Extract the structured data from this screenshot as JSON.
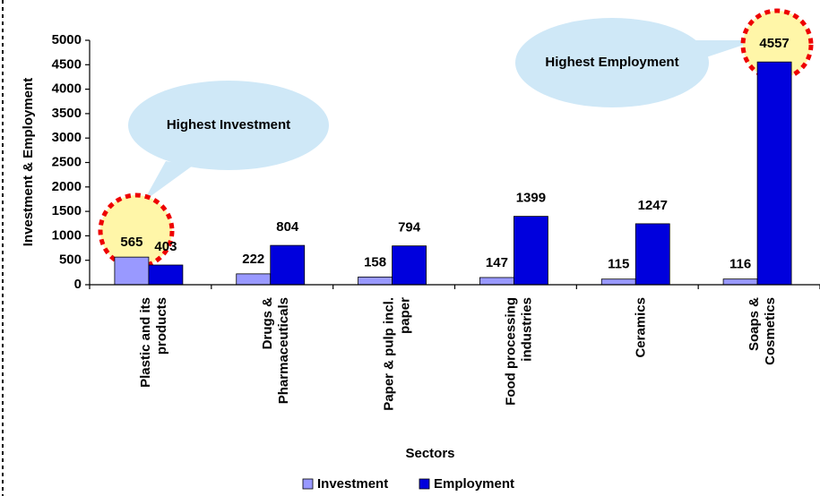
{
  "chart_data": {
    "type": "bar",
    "xlabel": "Sectors",
    "ylabel": "Investment & Employment",
    "categories": [
      "Plastic and its\nproducts",
      "Drugs &\nPharmaceuticals",
      "Paper & pulp incl.\npaper",
      "Food processing\nindustries",
      "Ceramics",
      "Soaps &\nCosmetics"
    ],
    "series": [
      {
        "name": "Investment",
        "color": "#9999ff",
        "values": [
          565,
          222,
          158,
          147,
          115,
          116
        ]
      },
      {
        "name": "Employment",
        "color": "#0000dd",
        "values": [
          403,
          804,
          794,
          1399,
          1247,
          4557
        ]
      }
    ],
    "ylim": [
      0,
      5000
    ],
    "yticks": [
      0,
      500,
      1000,
      1500,
      2000,
      2500,
      3000,
      3500,
      4000,
      4500,
      5000
    ],
    "annotations": [
      "Highest Investment",
      "Highest Employment"
    ],
    "legend": "bottom"
  }
}
